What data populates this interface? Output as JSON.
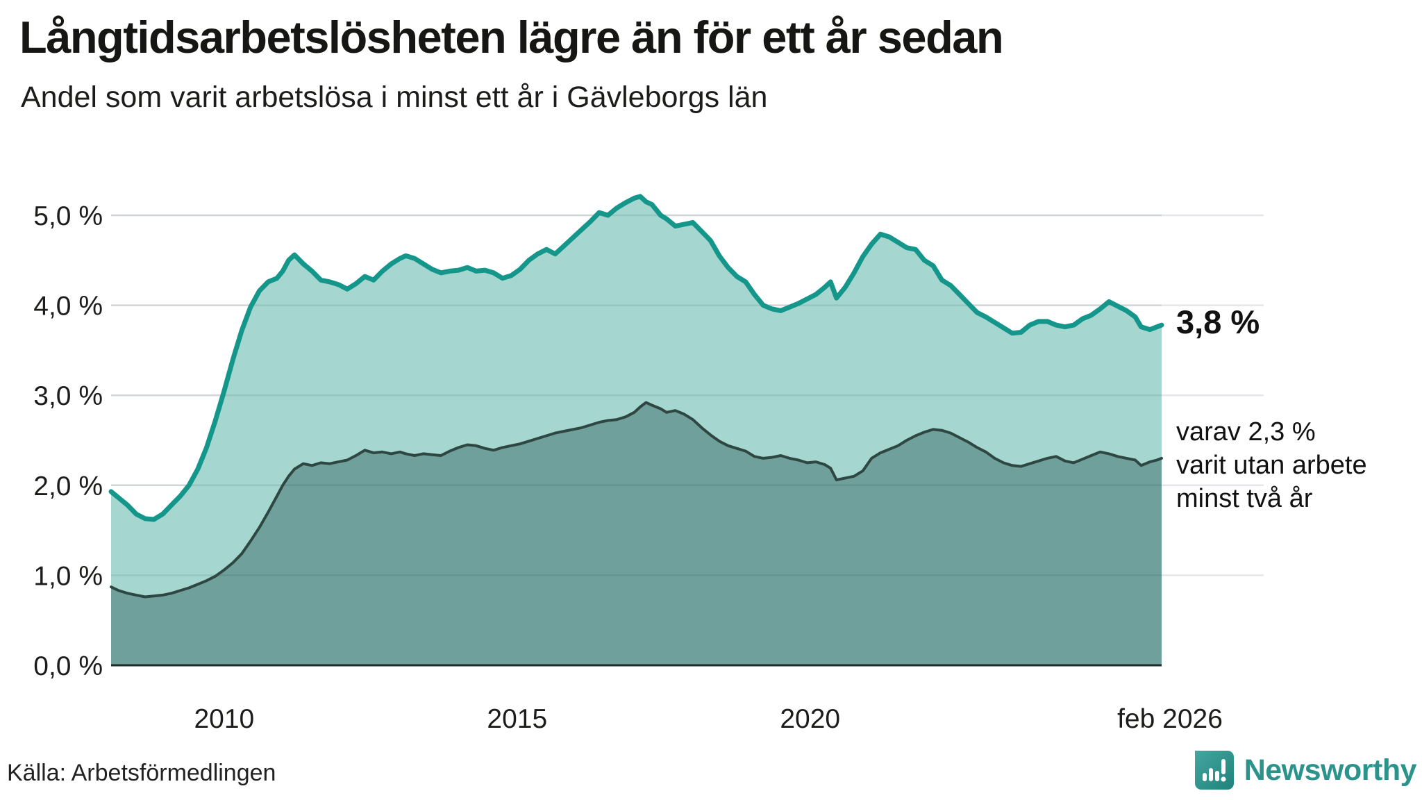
{
  "header": {
    "title": "Långtidsarbetslösheten lägre än för ett år sedan",
    "subtitle": "Andel som varit arbetslösa i minst ett år i Gävleborgs län"
  },
  "annotations": {
    "latest_total": "3,8 %",
    "two_year_lines": [
      "varav 2,3 %",
      "varit utan arbete",
      "minst två år"
    ]
  },
  "footer": {
    "source": "Källa: Arbetsförmedlingen",
    "brand": "Newsworthy",
    "brand_icon": "newsworthy-speech-bubble-chart-icon",
    "brand_color": "#2a938c"
  },
  "chart_data": {
    "type": "area",
    "title": "Långtidsarbetslösheten lägre än för ett år sedan",
    "xlabel": "",
    "ylabel": "",
    "xlim": [
      2008.07,
      2026.0
    ],
    "ylim": [
      0,
      5.25
    ],
    "grid": true,
    "x_ticks": [
      {
        "label": "2010",
        "t": 2010.0
      },
      {
        "label": "2015",
        "t": 2015.0
      },
      {
        "label": "2020",
        "t": 2020.0
      },
      {
        "label": "feb 2026",
        "t": 2026.0
      }
    ],
    "y_ticks": [
      {
        "label": "0,0 %",
        "v": 0
      },
      {
        "label": "1,0 %",
        "v": 1
      },
      {
        "label": "2,0 %",
        "v": 2
      },
      {
        "label": "3,0 %",
        "v": 3
      },
      {
        "label": "4,0 %",
        "v": 4
      },
      {
        "label": "5,0 %",
        "v": 5
      }
    ],
    "x": [
      2008.07,
      2008.2,
      2008.35,
      2008.5,
      2008.65,
      2008.8,
      2008.95,
      2009.1,
      2009.25,
      2009.4,
      2009.55,
      2009.7,
      2009.85,
      2010.0,
      2010.15,
      2010.3,
      2010.45,
      2010.6,
      2010.75,
      2010.9,
      2011.0,
      2011.1,
      2011.2,
      2011.35,
      2011.5,
      2011.65,
      2011.8,
      2011.95,
      2012.1,
      2012.25,
      2012.4,
      2012.55,
      2012.7,
      2012.85,
      2013.0,
      2013.1,
      2013.25,
      2013.4,
      2013.55,
      2013.7,
      2013.85,
      2014.0,
      2014.15,
      2014.3,
      2014.45,
      2014.6,
      2014.75,
      2014.9,
      2015.05,
      2015.2,
      2015.35,
      2015.5,
      2015.65,
      2015.8,
      2015.95,
      2016.1,
      2016.25,
      2016.4,
      2016.55,
      2016.7,
      2016.85,
      2017.0,
      2017.1,
      2017.2,
      2017.3,
      2017.45,
      2017.55,
      2017.7,
      2017.85,
      2018.0,
      2018.15,
      2018.3,
      2018.45,
      2018.6,
      2018.75,
      2018.9,
      2019.05,
      2019.2,
      2019.35,
      2019.5,
      2019.65,
      2019.8,
      2019.95,
      2020.1,
      2020.25,
      2020.35,
      2020.45,
      2020.6,
      2020.75,
      2020.9,
      2021.05,
      2021.2,
      2021.35,
      2021.5,
      2021.65,
      2021.8,
      2021.95,
      2022.1,
      2022.25,
      2022.4,
      2022.55,
      2022.7,
      2022.85,
      2023.0,
      2023.15,
      2023.3,
      2023.45,
      2023.6,
      2023.75,
      2023.9,
      2024.05,
      2024.2,
      2024.35,
      2024.5,
      2024.65,
      2024.8,
      2024.95,
      2025.1,
      2025.25,
      2025.4,
      2025.55,
      2025.65,
      2025.8,
      2025.92,
      2026.0
    ],
    "series": [
      {
        "name": "Andel arbetslösa minst ett år",
        "color": "#14968b",
        "fill": "#a5d6d0",
        "line_width": 7,
        "values": [
          1.93,
          1.86,
          1.78,
          1.68,
          1.63,
          1.62,
          1.68,
          1.78,
          1.88,
          2.0,
          2.18,
          2.42,
          2.72,
          3.05,
          3.4,
          3.72,
          3.98,
          4.16,
          4.26,
          4.3,
          4.38,
          4.5,
          4.56,
          4.46,
          4.38,
          4.28,
          4.26,
          4.23,
          4.18,
          4.24,
          4.32,
          4.28,
          4.38,
          4.46,
          4.52,
          4.55,
          4.52,
          4.46,
          4.4,
          4.36,
          4.38,
          4.39,
          4.42,
          4.38,
          4.39,
          4.36,
          4.3,
          4.33,
          4.4,
          4.5,
          4.57,
          4.62,
          4.57,
          4.66,
          4.75,
          4.84,
          4.93,
          5.03,
          5.0,
          5.08,
          5.14,
          5.19,
          5.21,
          5.15,
          5.12,
          5.0,
          4.96,
          4.88,
          4.9,
          4.92,
          4.82,
          4.72,
          4.55,
          4.42,
          4.32,
          4.26,
          4.12,
          4.0,
          3.96,
          3.94,
          3.98,
          4.02,
          4.07,
          4.12,
          4.2,
          4.26,
          4.08,
          4.2,
          4.36,
          4.54,
          4.68,
          4.79,
          4.76,
          4.7,
          4.64,
          4.62,
          4.5,
          4.44,
          4.28,
          4.22,
          4.12,
          4.02,
          3.92,
          3.87,
          3.81,
          3.75,
          3.69,
          3.7,
          3.78,
          3.82,
          3.82,
          3.78,
          3.76,
          3.78,
          3.85,
          3.89,
          3.96,
          4.04,
          3.99,
          3.94,
          3.87,
          3.76,
          3.73,
          3.76,
          3.78
        ],
        "end_label": "3,8 %"
      },
      {
        "name": "Andel arbetslösa minst två år",
        "color": "#2e4742",
        "fill": "#6fa09b",
        "line_width": 4,
        "values": [
          0.87,
          0.83,
          0.8,
          0.78,
          0.76,
          0.77,
          0.78,
          0.8,
          0.83,
          0.86,
          0.9,
          0.94,
          0.99,
          1.06,
          1.14,
          1.24,
          1.38,
          1.53,
          1.7,
          1.88,
          2.0,
          2.1,
          2.18,
          2.24,
          2.22,
          2.25,
          2.24,
          2.26,
          2.28,
          2.33,
          2.39,
          2.36,
          2.37,
          2.35,
          2.37,
          2.35,
          2.33,
          2.35,
          2.34,
          2.33,
          2.38,
          2.42,
          2.45,
          2.44,
          2.41,
          2.39,
          2.42,
          2.44,
          2.46,
          2.49,
          2.52,
          2.55,
          2.58,
          2.6,
          2.62,
          2.64,
          2.67,
          2.7,
          2.72,
          2.73,
          2.76,
          2.81,
          2.87,
          2.92,
          2.89,
          2.85,
          2.81,
          2.83,
          2.79,
          2.73,
          2.64,
          2.56,
          2.49,
          2.44,
          2.41,
          2.38,
          2.32,
          2.3,
          2.31,
          2.33,
          2.3,
          2.28,
          2.25,
          2.26,
          2.23,
          2.19,
          2.06,
          2.08,
          2.1,
          2.16,
          2.3,
          2.36,
          2.4,
          2.44,
          2.5,
          2.55,
          2.59,
          2.62,
          2.61,
          2.58,
          2.53,
          2.48,
          2.42,
          2.37,
          2.3,
          2.25,
          2.22,
          2.21,
          2.24,
          2.27,
          2.3,
          2.32,
          2.27,
          2.25,
          2.29,
          2.33,
          2.37,
          2.35,
          2.32,
          2.3,
          2.28,
          2.22,
          2.26,
          2.28,
          2.3
        ],
        "end_label": "varav 2,3 %"
      }
    ],
    "legend_position": "right-annotations"
  }
}
